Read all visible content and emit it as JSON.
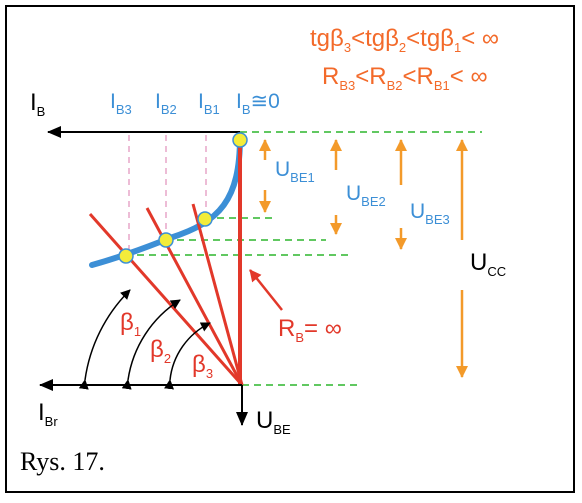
{
  "labels": {
    "ib": "I",
    "ib_sub": "B",
    "ibr": "I",
    "ibr_sub": "Br",
    "ube": "U",
    "ube_sub": "BE",
    "ib3": "I",
    "ib3_sub": "B3",
    "ib2": "I",
    "ib2_sub": "B2",
    "ib1": "I",
    "ib1_sub": "B1",
    "ib0": "I",
    "ib0_sub": "B",
    "ib0_suffix": "≅0",
    "ube1": "U",
    "ube1_sub": "BE1",
    "ube2": "U",
    "ube2_sub": "BE2",
    "ube3": "U",
    "ube3_sub": "BE3",
    "ucc": "U",
    "ucc_sub": "CC",
    "rb": "R",
    "rb_sub": "B",
    "rb_suffix": "= ∞",
    "beta": "β",
    "beta1_sub": "1",
    "beta2_sub": "2",
    "beta3_sub": "3"
  },
  "formulas": {
    "tg_p1": "tgβ",
    "tg_s1": "3",
    "tg_p2": "<tgβ",
    "tg_s2": "2",
    "tg_p3": "<tgβ",
    "tg_s3": "1",
    "tg_end": "< ∞",
    "r_p1": "R",
    "r_s1": "B3",
    "r_p2": "<R",
    "r_s2": "B2",
    "r_p3": "<R",
    "r_s3": "B1",
    "r_end": "< ∞"
  },
  "caption": "Rys. 17.",
  "colors": {
    "curve": "#3c8fd6",
    "load_lines": "#e2382a",
    "voltage_arrows": "#f39a2a",
    "guides": "#2db52d",
    "formula": "#f36a2a",
    "operating_points": "#f3ec3a"
  }
}
